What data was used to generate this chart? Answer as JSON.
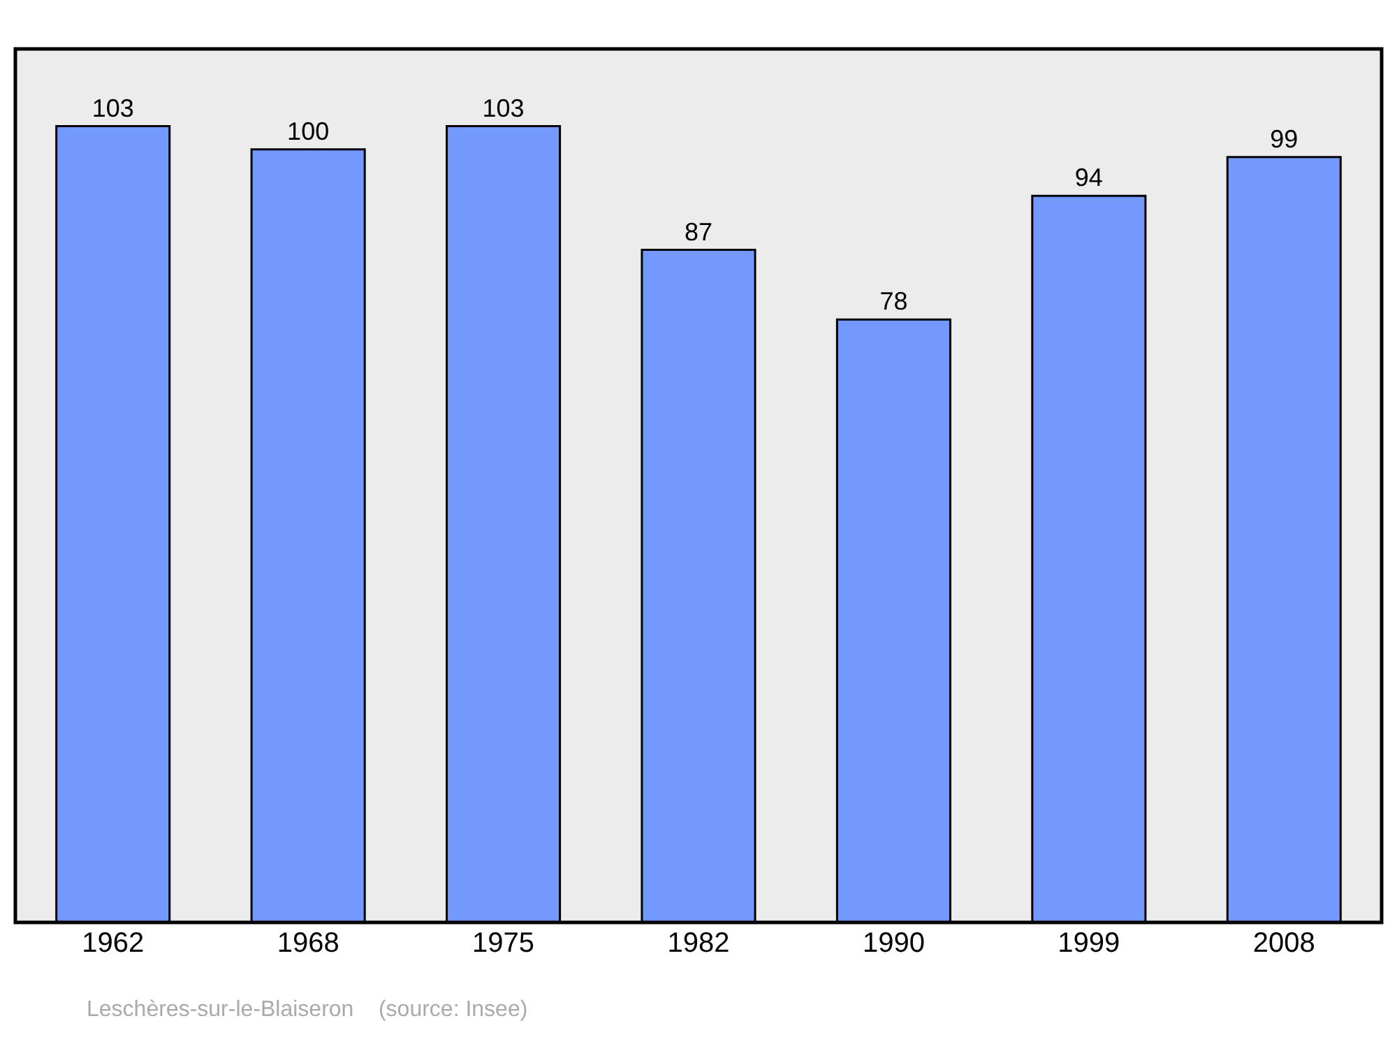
{
  "chart_data": {
    "type": "bar",
    "categories": [
      "1962",
      "1968",
      "1975",
      "1982",
      "1990",
      "1999",
      "2008"
    ],
    "values": [
      103,
      100,
      103,
      87,
      78,
      94,
      99
    ],
    "color": "#7399ff",
    "ylim": [
      0,
      113
    ],
    "tick_labels": "x",
    "data_labels": true,
    "grid": false,
    "legend": false,
    "annotations": [
      "Leschères-sur-le-Blaiseron    (source: Insee)"
    ]
  }
}
